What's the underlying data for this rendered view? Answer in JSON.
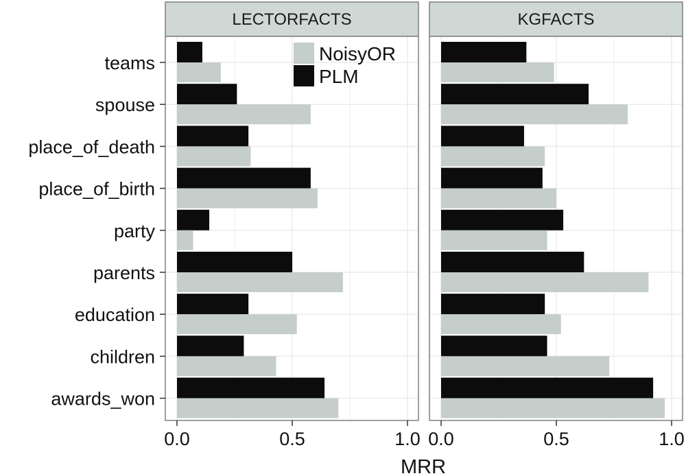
{
  "chart_data": {
    "type": "bar",
    "orientation": "horizontal",
    "xlabel": "MRR",
    "xlim": [
      0,
      1.0
    ],
    "xticks": [
      "0.0",
      "0.5",
      "1.0"
    ],
    "categories": [
      "teams",
      "spouse",
      "place_of_death",
      "place_of_birth",
      "party",
      "parents",
      "education",
      "children",
      "awards_won"
    ],
    "legend": {
      "position": "top-right",
      "entries": [
        {
          "name": "NoisyOR",
          "color": "#c5ceca"
        },
        {
          "name": "PLM",
          "color": "#0c0c0c"
        }
      ]
    },
    "panels": [
      {
        "title": "LECTORFACTS",
        "series": [
          {
            "name": "PLM",
            "color": "#0c0c0c",
            "values": [
              0.11,
              0.26,
              0.31,
              0.58,
              0.14,
              0.5,
              0.31,
              0.29,
              0.64
            ]
          },
          {
            "name": "NoisyOR",
            "color": "#c5ceca",
            "values": [
              0.19,
              0.58,
              0.32,
              0.61,
              0.07,
              0.72,
              0.52,
              0.43,
              0.7
            ]
          }
        ]
      },
      {
        "title": "KGFACTS",
        "series": [
          {
            "name": "PLM",
            "color": "#0c0c0c",
            "values": [
              0.37,
              0.64,
              0.36,
              0.44,
              0.53,
              0.62,
              0.45,
              0.46,
              0.92
            ]
          },
          {
            "name": "NoisyOR",
            "color": "#c5ceca",
            "values": [
              0.49,
              0.81,
              0.45,
              0.5,
              0.46,
              0.9,
              0.52,
              0.73,
              0.97
            ]
          }
        ]
      }
    ],
    "grid": true,
    "strip_color": "#cfd8d5",
    "panel_border_color": "#7f7f7f",
    "grid_color": "#ebebeb"
  }
}
